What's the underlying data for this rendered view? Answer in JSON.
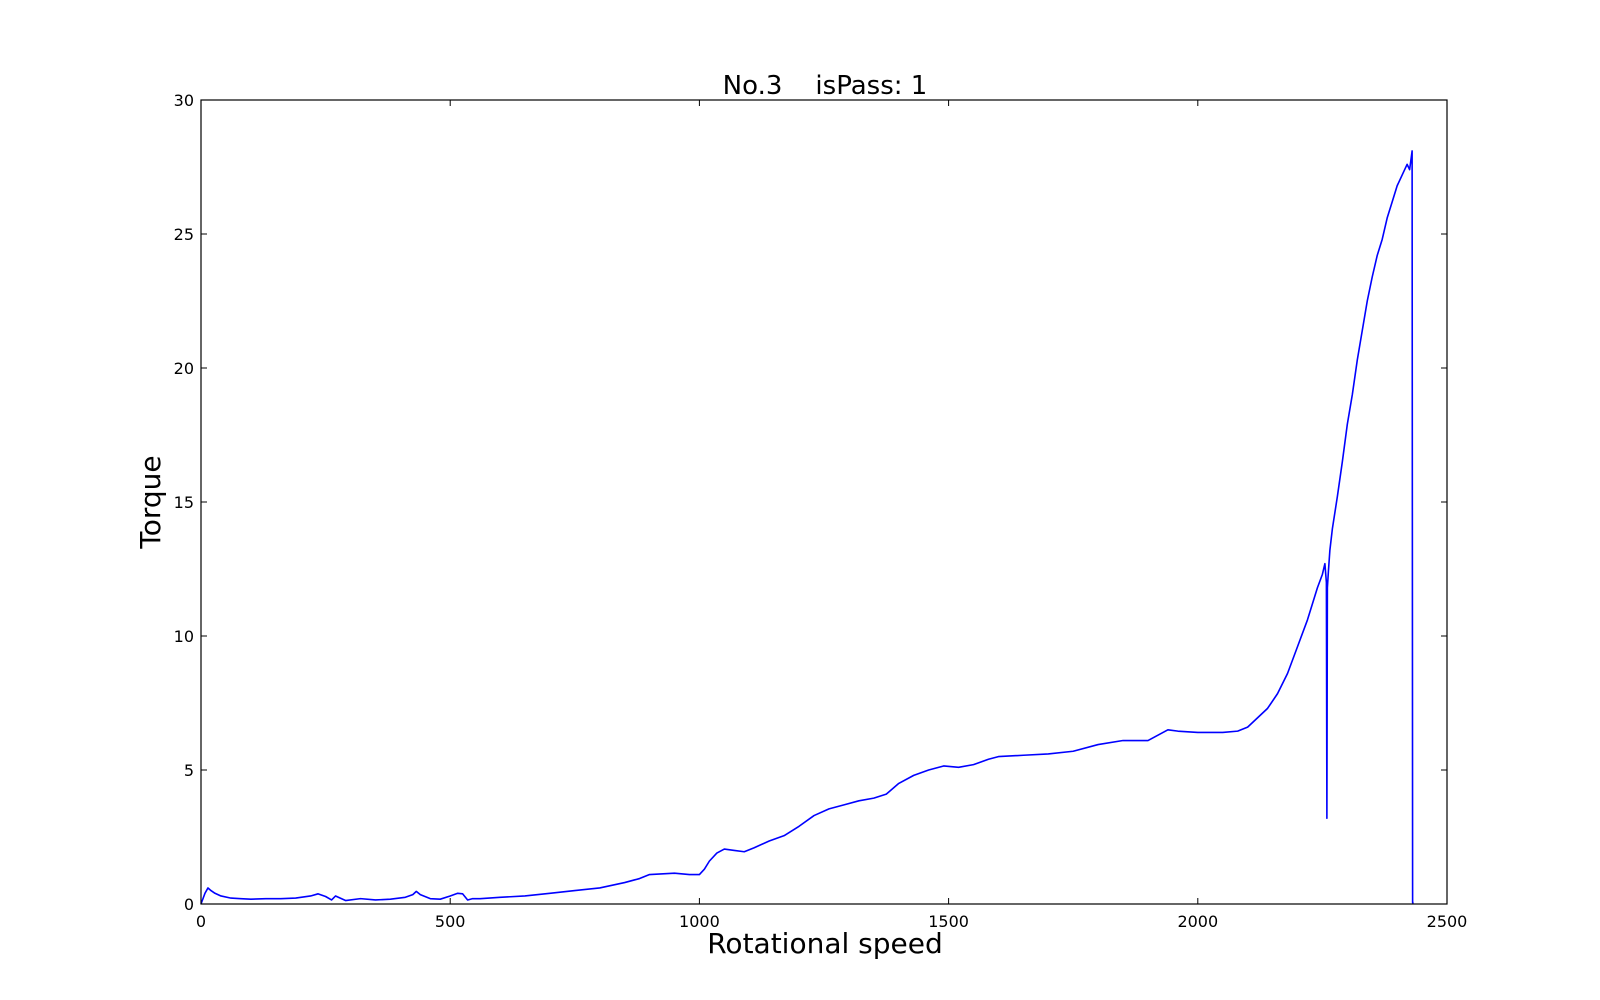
{
  "chart_data": {
    "type": "line",
    "title": "No.3    isPass: 1",
    "xlabel": "Rotational speed",
    "ylabel": "Torque",
    "xlim": [
      0,
      2500
    ],
    "ylim": [
      0,
      30
    ],
    "xticks": [
      0,
      500,
      1000,
      1500,
      2000,
      2500
    ],
    "yticks": [
      0,
      5,
      10,
      15,
      20,
      25,
      30
    ],
    "grid": false,
    "series": [
      {
        "color": "#0000ff",
        "x": [
          0,
          4,
          8,
          14,
          20,
          28,
          40,
          60,
          80,
          100,
          130,
          160,
          190,
          220,
          235,
          250,
          262,
          270,
          290,
          320,
          350,
          380,
          410,
          425,
          432,
          440,
          460,
          480,
          500,
          515,
          525,
          535,
          545,
          560,
          600,
          650,
          700,
          750,
          800,
          850,
          880,
          900,
          950,
          980,
          1000,
          1010,
          1020,
          1035,
          1050,
          1070,
          1090,
          1110,
          1140,
          1170,
          1200,
          1230,
          1260,
          1290,
          1320,
          1350,
          1375,
          1400,
          1430,
          1460,
          1490,
          1520,
          1550,
          1580,
          1600,
          1650,
          1700,
          1750,
          1800,
          1850,
          1900,
          1920,
          1940,
          1960,
          2000,
          2050,
          2080,
          2100,
          2120,
          2140,
          2160,
          2180,
          2200,
          2220,
          2240,
          2250,
          2255,
          2258,
          2259,
          2260,
          2262,
          2265,
          2270,
          2280,
          2290,
          2300,
          2310,
          2320,
          2330,
          2340,
          2350,
          2360,
          2370,
          2380,
          2390,
          2400,
          2410,
          2420,
          2425,
          2430,
          2431,
          2432,
          2433
        ],
        "y": [
          0.0,
          0.2,
          0.4,
          0.6,
          0.5,
          0.4,
          0.3,
          0.22,
          0.2,
          0.18,
          0.2,
          0.2,
          0.22,
          0.3,
          0.38,
          0.28,
          0.15,
          0.3,
          0.13,
          0.2,
          0.15,
          0.18,
          0.25,
          0.35,
          0.47,
          0.35,
          0.2,
          0.18,
          0.3,
          0.4,
          0.38,
          0.15,
          0.2,
          0.2,
          0.25,
          0.3,
          0.4,
          0.5,
          0.6,
          0.8,
          0.95,
          1.1,
          1.15,
          1.1,
          1.1,
          1.3,
          1.6,
          1.9,
          2.05,
          2.0,
          1.95,
          2.1,
          2.35,
          2.55,
          2.9,
          3.3,
          3.55,
          3.7,
          3.85,
          3.95,
          4.1,
          4.5,
          4.8,
          5.0,
          5.15,
          5.1,
          5.2,
          5.4,
          5.5,
          5.55,
          5.6,
          5.7,
          5.95,
          6.1,
          6.1,
          6.3,
          6.5,
          6.45,
          6.4,
          6.4,
          6.45,
          6.6,
          6.95,
          7.3,
          7.85,
          8.6,
          9.6,
          10.6,
          11.8,
          12.3,
          12.7,
          12.0,
          3.2,
          11.8,
          12.4,
          13.2,
          14.0,
          15.2,
          16.5,
          17.9,
          19.0,
          20.3,
          21.4,
          22.5,
          23.4,
          24.2,
          24.8,
          25.6,
          26.2,
          26.8,
          27.2,
          27.6,
          27.4,
          28.1,
          0.05,
          0.05,
          0.05
        ]
      }
    ]
  }
}
